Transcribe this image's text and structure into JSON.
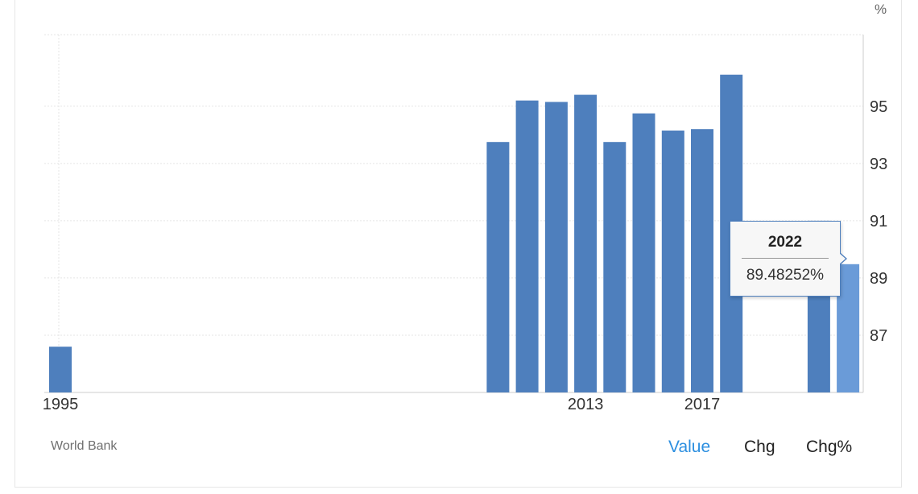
{
  "unit_label": "%",
  "source": "World Bank",
  "tabs": [
    {
      "label": "Value",
      "active": true
    },
    {
      "label": "Chg",
      "active": false
    },
    {
      "label": "Chg%",
      "active": false
    }
  ],
  "tooltip": {
    "year": "2022",
    "value": "89.48252%"
  },
  "colors": {
    "bar": "#4e7fbd",
    "bar_highlight": "#6a9bd8",
    "grid": "#e5e5e5",
    "active_tab": "#2c8fe0"
  },
  "chart_data": {
    "type": "bar",
    "title": "",
    "xlabel": "",
    "ylabel": "%",
    "ylim": [
      85,
      97.5
    ],
    "y_ticks": [
      87,
      89,
      91,
      93,
      95
    ],
    "x_ticks": [
      "1995",
      "2013",
      "2017"
    ],
    "grid": true,
    "categories": [
      "1995",
      "2010",
      "2011",
      "2012",
      "2013",
      "2014",
      "2015",
      "2016",
      "2017",
      "2018",
      "2021",
      "2022"
    ],
    "values": [
      86.6,
      93.75,
      95.2,
      95.15,
      95.4,
      93.75,
      94.75,
      94.15,
      94.2,
      96.1,
      91.0,
      89.48252
    ],
    "highlighted": "2022"
  }
}
